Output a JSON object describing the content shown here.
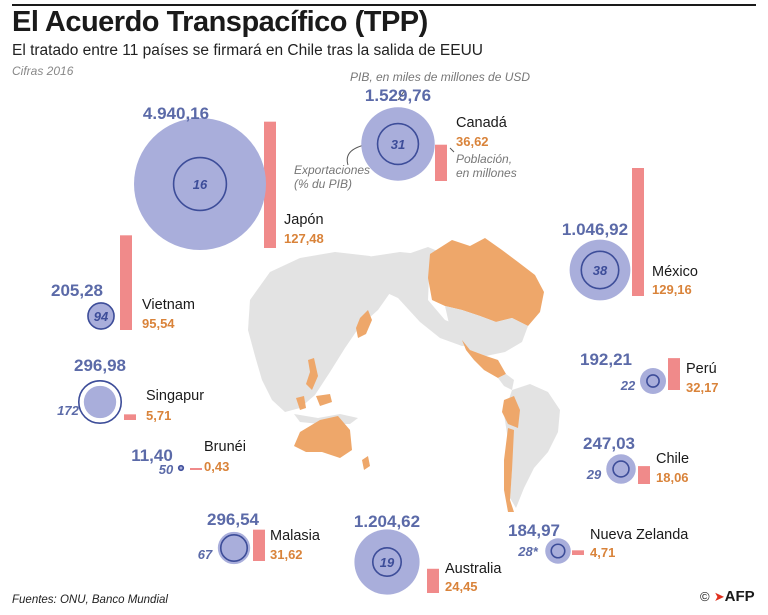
{
  "title": "El Acuerdo Transpacífico (TPP)",
  "subtitle": "El tratado entre 11 países se firmará en Chile tras la salida de EEUU",
  "year_note": "Cifras 2016",
  "sources": "Fuentes: ONU, Banco Mundial",
  "logo": {
    "copyright": "©",
    "arrow": "➤",
    "text": "AFP"
  },
  "colors": {
    "gdp_circle": "#a9aedb",
    "export_circle_stroke": "#3d4d99",
    "population_bar": "#f08a8a",
    "value_gdp": "#5b6aa8",
    "value_population": "#d9833a",
    "map_member": "#eea76a",
    "map_other": "#e3e3e3"
  },
  "legend": {
    "gdp": "PIB, en miles de millones de USD",
    "exports_line1": "Exportaciones",
    "exports_line2": "(% du PIB)",
    "population_line1": "Población,",
    "population_line2": "en millones"
  },
  "chart_data": {
    "type": "bubble-map",
    "title": "El Acuerdo Transpacífico (TPP)",
    "series": [
      {
        "name": "PIB, en miles de millones de USD",
        "unit": "USD bn"
      },
      {
        "name": "Exportaciones (% du PIB)",
        "unit": "%"
      },
      {
        "name": "Población, en millones",
        "unit": "millones"
      }
    ],
    "countries": [
      {
        "name": "Japón",
        "gdp": 4940.16,
        "gdp_label": "4.940,16",
        "exports_pct": 16,
        "exports_label": "16",
        "population": 127.48,
        "population_label": "127,48"
      },
      {
        "name": "Canadá",
        "gdp": 1529.76,
        "gdp_label": "1.529,76",
        "exports_pct": 31,
        "exports_label": "31",
        "population": 36.62,
        "population_label": "36,62"
      },
      {
        "name": "México",
        "gdp": 1046.92,
        "gdp_label": "1.046,92",
        "exports_pct": 38,
        "exports_label": "38",
        "population": 129.16,
        "population_label": "129,16"
      },
      {
        "name": "Vietnam",
        "gdp": 205.28,
        "gdp_label": "205,28",
        "exports_pct": 94,
        "exports_label": "94",
        "population": 95.54,
        "population_label": "95,54"
      },
      {
        "name": "Singapur",
        "gdp": 296.98,
        "gdp_label": "296,98",
        "exports_pct": 172,
        "exports_label": "172",
        "population": 5.71,
        "population_label": "5,71"
      },
      {
        "name": "Perú",
        "gdp": 192.21,
        "gdp_label": "192,21",
        "exports_pct": 22,
        "exports_label": "22",
        "population": 32.17,
        "population_label": "32,17"
      },
      {
        "name": "Brunéi",
        "gdp": 11.4,
        "gdp_label": "11,40",
        "exports_pct": 50,
        "exports_label": "50",
        "population": 0.43,
        "population_label": "0,43"
      },
      {
        "name": "Chile",
        "gdp": 247.03,
        "gdp_label": "247,03",
        "exports_pct": 29,
        "exports_label": "29",
        "population": 18.06,
        "population_label": "18,06"
      },
      {
        "name": "Malasia",
        "gdp": 296.54,
        "gdp_label": "296,54",
        "exports_pct": 67,
        "exports_label": "67",
        "population": 31.62,
        "population_label": "31,62"
      },
      {
        "name": "Australia",
        "gdp": 1204.62,
        "gdp_label": "1.204,62",
        "exports_pct": 19,
        "exports_label": "19",
        "population": 24.45,
        "population_label": "24,45"
      },
      {
        "name": "Nueva Zelanda",
        "gdp": 184.97,
        "gdp_label": "184,97",
        "exports_pct": 28,
        "exports_label": "28*",
        "population": 4.71,
        "population_label": "4,71"
      }
    ]
  }
}
